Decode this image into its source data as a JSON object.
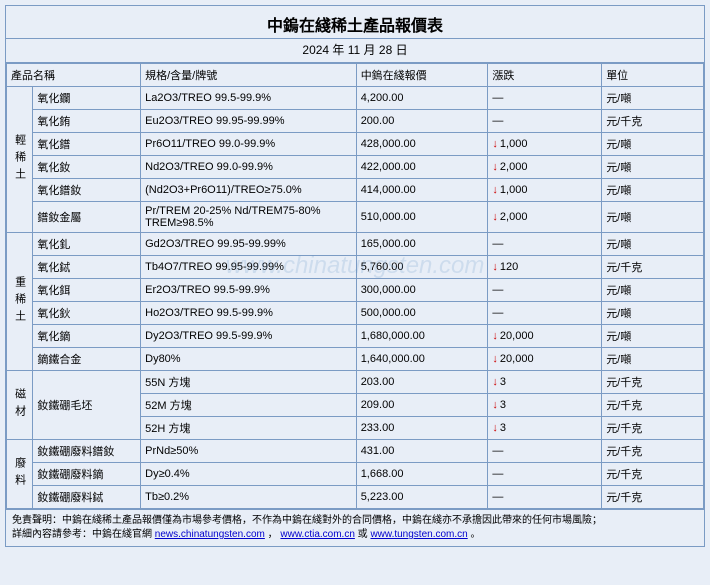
{
  "title": "中鎢在綫稀土產品報價表",
  "date": "2024 年 11 月 28 日",
  "headers": {
    "name": "產品名稱",
    "spec": "規格/含量/牌號",
    "price": "中鎢在綫報價",
    "change": "漲跌",
    "unit": "單位"
  },
  "groups": [
    {
      "cat": "輕稀土",
      "rows": [
        {
          "name": "氧化鑭",
          "spec": "La2O3/TREO 99.5-99.9%",
          "price": "4,200.00",
          "change": "—",
          "unit": "元/噸"
        },
        {
          "name": "氧化銪",
          "spec": "Eu2O3/TREO 99.95-99.99%",
          "price": "200.00",
          "change": "—",
          "unit": "元/千克"
        },
        {
          "name": "氧化鐠",
          "spec": "Pr6O11/TREO 99.0-99.9%",
          "price": "428,000.00",
          "change": "1,000",
          "dir": "down",
          "unit": "元/噸"
        },
        {
          "name": "氧化釹",
          "spec": "Nd2O3/TREO 99.0-99.9%",
          "price": "422,000.00",
          "change": "2,000",
          "dir": "down",
          "unit": "元/噸"
        },
        {
          "name": "氧化鐠釹",
          "spec": "(Nd2O3+Pr6O11)/TREO≥75.0%",
          "price": "414,000.00",
          "change": "1,000",
          "dir": "down",
          "unit": "元/噸"
        },
        {
          "name": "鐠釹金屬",
          "spec": "Pr/TREM 20-25% Nd/TREM75-80% TREM≥98.5%",
          "price": "510,000.00",
          "change": "2,000",
          "dir": "down",
          "unit": "元/噸"
        }
      ]
    },
    {
      "cat": "重稀土",
      "rows": [
        {
          "name": "氧化釓",
          "spec": "Gd2O3/TREO 99.95-99.99%",
          "price": "165,000.00",
          "change": "—",
          "unit": "元/噸"
        },
        {
          "name": "氧化鋱",
          "spec": "Tb4O7/TREO 99.95-99.99%",
          "price": "5,760.00",
          "change": "120",
          "dir": "down",
          "unit": "元/千克"
        },
        {
          "name": "氧化鉺",
          "spec": "Er2O3/TREO 99.5-99.9%",
          "price": "300,000.00",
          "change": "—",
          "unit": "元/噸"
        },
        {
          "name": "氧化鈥",
          "spec": "Ho2O3/TREO 99.5-99.9%",
          "price": "500,000.00",
          "change": "—",
          "unit": "元/噸"
        },
        {
          "name": "氧化鏑",
          "spec": "Dy2O3/TREO 99.5-99.9%",
          "price": "1,680,000.00",
          "change": "20,000",
          "dir": "down",
          "unit": "元/噸"
        },
        {
          "name": "鏑鐵合金",
          "spec": "Dy80%",
          "price": "1,640,000.00",
          "change": "20,000",
          "dir": "down",
          "unit": "元/噸"
        }
      ]
    },
    {
      "cat": "磁材",
      "rows": [
        {
          "name": "釹鐵硼毛坯",
          "spec": "55N 方塊",
          "price": "203.00",
          "change": "3",
          "dir": "down",
          "unit": "元/千克",
          "rowspan": 3
        },
        {
          "spec": "52M 方塊",
          "price": "209.00",
          "change": "3",
          "dir": "down",
          "unit": "元/千克"
        },
        {
          "spec": "52H 方塊",
          "price": "233.00",
          "change": "3",
          "dir": "down",
          "unit": "元/千克"
        }
      ]
    },
    {
      "cat": "廢料",
      "rows": [
        {
          "name": "釹鐵硼廢料鐠釹",
          "spec": "PrNd≥50%",
          "price": "431.00",
          "change": "—",
          "unit": "元/千克"
        },
        {
          "name": "釹鐵硼廢料鏑",
          "spec": "Dy≥0.4%",
          "price": "1,668.00",
          "change": "—",
          "unit": "元/千克"
        },
        {
          "name": "釹鐵硼廢料鋱",
          "spec": "Tb≥0.2%",
          "price": "5,223.00",
          "change": "—",
          "unit": "元/千克"
        }
      ]
    }
  ],
  "disclaimer": {
    "line1_a": "免責聲明：中鎢在綫稀土產品報價僅為市場參考價格，不作為中鎢在綫對外的合同價格，中鎢在綫亦不承擔因此帶來的任何市場風險；",
    "line2_a": "詳細內容請參考：中鎢在綫官網 ",
    "link1": "news.chinatungsten.com",
    "link_sep": " ， ",
    "link2": "www.ctia.com.cn",
    "link_or": " 或 ",
    "link3": "www.tungsten.com.cn",
    "tail": " 。"
  },
  "watermark": "www.chinatungsten.com"
}
